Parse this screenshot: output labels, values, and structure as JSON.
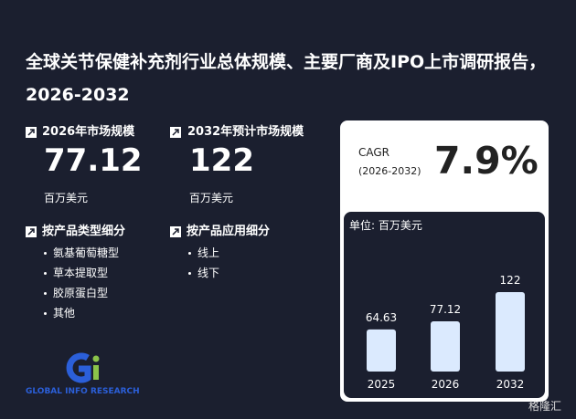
{
  "header": {
    "title": "全球关节保健补充剂行业总体规模、主要厂商及IPO上市调研报告，2026-2032"
  },
  "stats": [
    {
      "label": "2026年市场规模",
      "value": 77.12,
      "unit": "百万美元"
    },
    {
      "label": "2032年预计市场规模",
      "value": 122,
      "unit": "百万美元"
    }
  ],
  "segments": [
    {
      "title": "按产品类型细分",
      "items": [
        "氨基葡萄糖型",
        "草本提取型",
        "胶原蛋白型",
        "其他"
      ]
    },
    {
      "title": "按产品应用细分",
      "items": [
        "线上",
        "线下"
      ]
    }
  ],
  "cagr": {
    "label": "CAGR",
    "period": "(2026-2032)",
    "value": "7.9%"
  },
  "chart_data": {
    "type": "bar",
    "subtitle": "单位: 百万美元",
    "categories": [
      "2025",
      "2026",
      "2032"
    ],
    "values": [
      64.63,
      77.12,
      122
    ],
    "color": "#dbeafe"
  },
  "logo": {
    "text": "GLOBAL INFO RESEARCH"
  },
  "watermark": "格隆汇"
}
